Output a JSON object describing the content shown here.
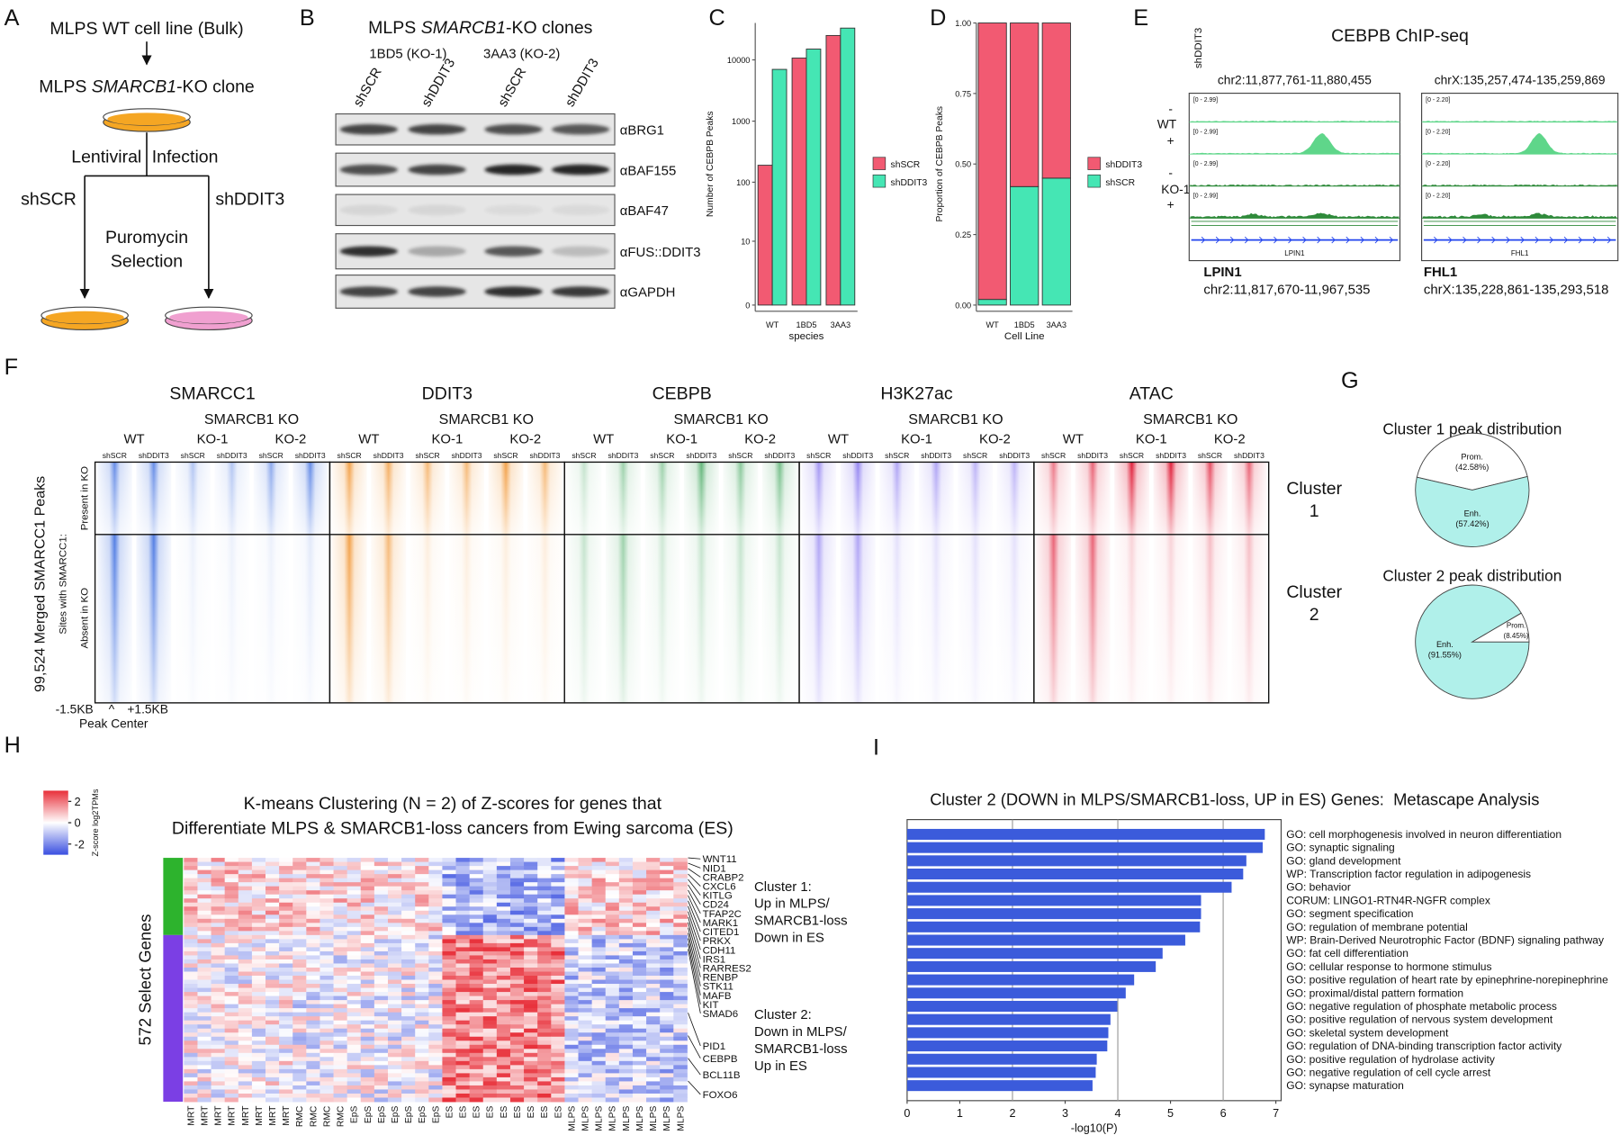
{
  "panel_a": {
    "letter": "A",
    "bulk": "MLPS WT cell line (Bulk)",
    "clone_prefix": "MLPS ",
    "clone_gene": "SMARCB1",
    "clone_suffix": "-KO clone",
    "infection": [
      "Lentiviral",
      "Infection"
    ],
    "arms": [
      "shSCR",
      "shDDIT3"
    ],
    "selection": [
      "Puromycin",
      "Selection"
    ]
  },
  "panel_b": {
    "letter": "B",
    "title_prefix": "MLPS ",
    "title_gene": "SMARCB1",
    "title_suffix": "-KO clones",
    "clones": [
      "1BD5 (KO-1)",
      "3AA3 (KO-2)"
    ],
    "lanes": [
      "shSCR",
      "shDDIT3",
      "shSCR",
      "shDDIT3"
    ],
    "antibodies": [
      "αBRG1",
      "αBAF155",
      "αBAF47",
      "αFUS::DDIT3",
      "αGAPDH"
    ]
  },
  "panel_e": {
    "letter": "E",
    "title": "CEBPB ChIP-seq",
    "condition_label": "shDDIT3",
    "row_groups": [
      "WT",
      "KO-1"
    ],
    "signs": [
      "-",
      "+",
      "-",
      "+"
    ],
    "loci": [
      {
        "view": "chr2:11,877,761-11,880,455",
        "range": "[0 - 2.99]",
        "gene": "LPIN1",
        "coords": "chr2:11,817,670-11,967,535"
      },
      {
        "view": "chrX:135,257,474-135,259,869",
        "range": "[0 - 2.20]",
        "gene": "FHL1",
        "coords": "chrX:135,228,861-135,293,518"
      }
    ]
  },
  "panel_f": {
    "letter": "F",
    "axis_label": "99,524 Merged SMARCC1 Peaks",
    "sites_label": "Sites with SMARCC1:",
    "cluster_rows": [
      "Present in KO",
      "Absent in KO"
    ],
    "cluster_names": [
      [
        "Cluster",
        "1"
      ],
      [
        "Cluster",
        "2"
      ]
    ],
    "x_left": "-1.5KB",
    "x_mid": "^",
    "x_right": "+1.5KB",
    "x_title": "Peak Center",
    "ko_label": "SMARCB1 KO",
    "conditions": [
      "WT",
      "KO-1",
      "KO-2"
    ],
    "lanes": [
      "shSCR",
      "shDDIT3"
    ],
    "marks": [
      "SMARCC1",
      "DDIT3",
      "CEBPB",
      "H3K27ac",
      "ATAC"
    ]
  },
  "panel_g": {
    "letter": "G"
  },
  "panel_h": {
    "letter": "H",
    "title": [
      "K-means Clustering (N = 2) of Z-scores for genes that",
      "Differentiate MLPS & SMARCB1-loss cancers from Ewing sarcoma (ES)"
    ],
    "colorbar_label": "Z-score log2TPMs",
    "colorbar_ticks": [
      2,
      0,
      -2
    ],
    "colorbar_lim": [
      -3,
      3
    ],
    "row_label": "572 Select Genes",
    "genes": [
      "WNT11",
      "NID1",
      "CRABP2",
      "CXCL6",
      "KITLG",
      "CD24",
      "TFAP2C",
      "MARK1",
      "CITED1",
      "PRKX",
      "CDH11",
      "IRS1",
      "RARRES2",
      "RENBP",
      "STK11",
      "MAFB",
      "KIT",
      "SMAD6",
      "PID1",
      "CEBPB",
      "BCL11B",
      "FOXO6"
    ],
    "clusters": [
      {
        "lines": [
          "Cluster 1:",
          "Up in MLPS/",
          "SMARCB1-loss",
          "Down in ES"
        ],
        "color": "#2db32d"
      },
      {
        "lines": [
          "Cluster 2:",
          "Down in MLPS/",
          "SMARCB1-loss",
          "Up in ES"
        ],
        "color": "#7b3fe4"
      }
    ],
    "samples": [
      "MRT",
      "MRT",
      "MRT",
      "MRT",
      "MRT",
      "MRT",
      "MRT",
      "MRT",
      "RMC",
      "RMC",
      "RMC",
      "RMC",
      "EpS",
      "EpS",
      "EpS",
      "EpS",
      "EpS",
      "EpS",
      "EpS",
      "ES",
      "ES",
      "ES",
      "ES",
      "ES",
      "ES",
      "ES",
      "ES",
      "ES",
      "MLPS",
      "MLPS",
      "MLPS",
      "MLPS",
      "MLPS",
      "MLPS",
      "MLPS",
      "MLPS",
      "MLPS"
    ]
  },
  "chart_data": [
    {
      "panel": "C",
      "type": "bar",
      "yscale": "log1p",
      "ylabel": "Number of CEBPB Peaks",
      "xlabel": "species",
      "categories": [
        "WT",
        "1BD5",
        "3AA3"
      ],
      "series": [
        {
          "name": "shSCR",
          "color": "#f25a72",
          "values": [
            190,
            10700,
            25000
          ]
        },
        {
          "name": "shDDIT3",
          "color": "#45e6b4",
          "values": [
            7000,
            15000,
            33000
          ]
        }
      ],
      "ylim": [
        0,
        40000
      ],
      "yticks": [
        0,
        10,
        100,
        1000,
        10000
      ]
    },
    {
      "panel": "D",
      "type": "stacked_bar",
      "ylabel": "Proportion of CEBPB Peaks",
      "xlabel": "Cell Line",
      "categories": [
        "WT",
        "1BD5",
        "3AA3"
      ],
      "series": [
        {
          "name": "shDDIT3",
          "color": "#f25a72",
          "values": [
            0.98,
            0.58,
            0.55
          ]
        },
        {
          "name": "shSCR",
          "color": "#45e6b4",
          "values": [
            0.02,
            0.42,
            0.45
          ]
        }
      ],
      "ylim": [
        0,
        1
      ],
      "yticks": [
        {
          "value": 0,
          "label": "0.00"
        },
        {
          "value": 0.25,
          "label": "0.25"
        },
        {
          "value": 0.5,
          "label": "0.50"
        },
        {
          "value": 0.75,
          "label": "0.75"
        },
        {
          "value": 1,
          "label": "1.00"
        }
      ]
    },
    {
      "panel": "G",
      "type": "pie",
      "title": "Cluster 1 peak distribution",
      "categories": [
        "Prom.",
        "Enh."
      ],
      "values": [
        42.58,
        57.42
      ],
      "value_labels": [
        "(42.58%)",
        "(57.42%)"
      ],
      "colors": [
        "#ffffff",
        "#b0f0ea"
      ]
    },
    {
      "type": "pie",
      "title": "Cluster 2 peak distribution",
      "categories": [
        "Enh.",
        "Prom."
      ],
      "values": [
        91.55,
        8.45
      ],
      "value_labels": [
        "(91.55%)",
        "(8.45%)"
      ],
      "colors": [
        "#b0f0ea",
        "#ffffff"
      ]
    },
    {
      "panel": "I",
      "type": "barh",
      "title": "Cluster 2 (DOWN in MLPS/SMARCB1-loss, UP in ES) Genes:  Metascape Analysis",
      "xlabel": "-log10(P)",
      "color": "#3b5bdb",
      "grid": true,
      "categories": [
        "GO: cell morphogenesis involved in neuron differentiation",
        "GO: synaptic signaling",
        "GO: gland development",
        "WP: Transcription factor regulation in adipogenesis",
        "GO: behavior",
        "CORUM: LINGO1-RTN4R-NGFR complex",
        "GO: segment specification",
        "GO: regulation of membrane potential",
        "WP: Brain-Derived Neurotrophic Factor (BDNF) signaling pathway",
        "GO: fat cell differentiation",
        "GO: cellular response to hormone stimulus",
        "GO: positive regulation of heart rate by epinephrine-norepinephrine",
        "GO: proximal/distal pattern formation",
        "GO: negative regulation of phosphate metabolic process",
        "GO: positive regulation of nervous system development",
        "GO: skeletal system development",
        "GO: regulation of DNA-binding transcription factor activity",
        "GO: positive regulation of hydrolase activity",
        "GO: negative regulation of cell cycle arrest",
        "GO: synapse maturation"
      ],
      "values": [
        6.79,
        6.75,
        6.44,
        6.38,
        6.16,
        5.58,
        5.58,
        5.56,
        5.28,
        4.85,
        4.72,
        4.31,
        4.15,
        3.99,
        3.86,
        3.82,
        3.8,
        3.6,
        3.58,
        3.52
      ],
      "label_colors": [
        "#2424d8",
        "#222222",
        "#2424d8",
        "#2424d8",
        "#222222",
        "#222222",
        "#2424d8",
        "#222222",
        "#222222",
        "#2424d8",
        "#222222",
        "#222222",
        "#2424d8",
        "#222222",
        "#2424d8",
        "#2424d8",
        "#222222",
        "#222222",
        "#222222",
        "#222222"
      ],
      "xlim": [
        0,
        7.1
      ],
      "xticks": [
        0,
        1,
        2,
        3,
        4,
        5,
        6,
        7
      ]
    }
  ]
}
